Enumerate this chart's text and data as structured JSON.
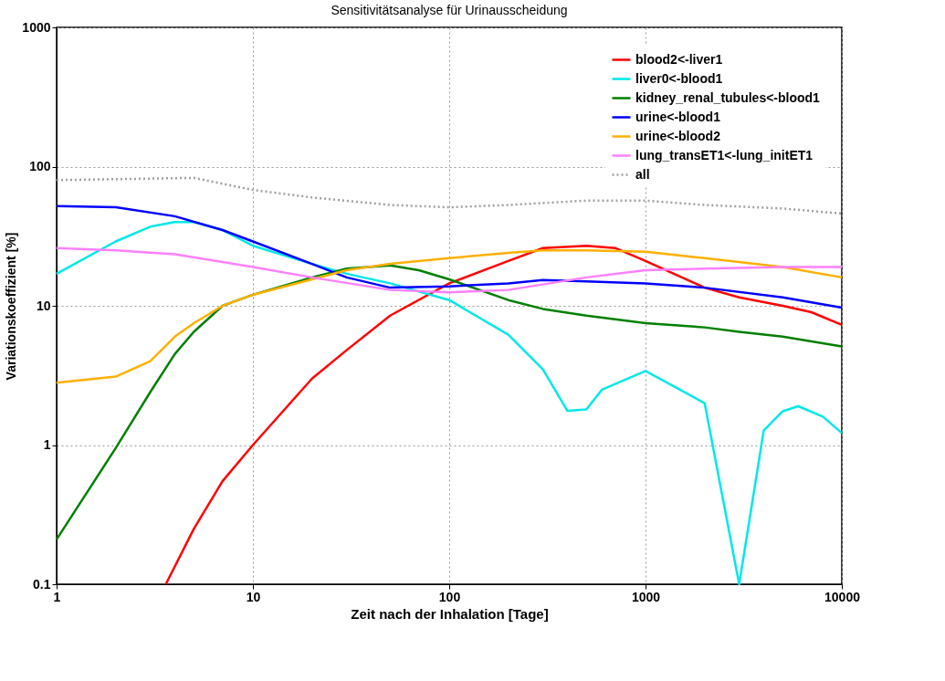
{
  "chart_data": {
    "type": "line",
    "title": "Sensitivitätsanalyse für Urinausscheidung",
    "xlabel": "Zeit nach der Inhalation [Tage]",
    "ylabel": "Variationskoeffizient [%]",
    "log": "xy",
    "xlim": [
      1,
      10000
    ],
    "ylim": [
      0.1,
      1000
    ],
    "xticks": [
      1,
      10,
      100,
      1000,
      10000
    ],
    "yticks": [
      0.1,
      1,
      10,
      100,
      1000
    ],
    "grid": true,
    "legend": "top right",
    "marker": "none",
    "series": [
      {
        "name": "blood2<-liver1",
        "color": "#ff0000",
        "line_style": "solid",
        "x": [
          3.6,
          5,
          7,
          10,
          20,
          30,
          50,
          100,
          200,
          300,
          500,
          700,
          1000,
          2000,
          3000,
          5000,
          7000,
          10000
        ],
        "values": [
          0.1,
          0.25,
          0.55,
          1.0,
          3,
          4.8,
          8.5,
          14.5,
          21,
          26,
          27,
          26,
          21,
          13.5,
          11.5,
          10,
          9,
          7.3
        ]
      },
      {
        "name": "liver0<-blood1",
        "color": "#00e8e8",
        "line_style": "solid",
        "x": [
          1,
          2,
          3,
          4,
          5,
          7,
          10,
          20,
          30,
          50,
          100,
          200,
          300,
          400,
          500,
          600,
          1000,
          2000,
          3000,
          4000,
          5000,
          6000,
          8000,
          10000
        ],
        "values": [
          17,
          29,
          37,
          40,
          40,
          35,
          27,
          20,
          17,
          14.5,
          11,
          6.2,
          3.5,
          1.76,
          1.8,
          2.5,
          3.4,
          2.0,
          0.1,
          1.27,
          1.75,
          1.9,
          1.6,
          1.22
        ]
      },
      {
        "name": "kidney_renal_tubules<-blood1",
        "color": "#008000",
        "line_style": "solid",
        "x": [
          1,
          2,
          3,
          4,
          5,
          7,
          10,
          20,
          30,
          50,
          70,
          100,
          200,
          300,
          500,
          1000,
          2000,
          3000,
          5000,
          10000
        ],
        "values": [
          0.21,
          0.95,
          2.4,
          4.5,
          6.5,
          10,
          12,
          16,
          18.5,
          19.5,
          18,
          15.5,
          11,
          9.5,
          8.5,
          7.5,
          7,
          6.5,
          6,
          5.1
        ]
      },
      {
        "name": "urine<-blood1",
        "color": "#0000ff",
        "line_style": "solid",
        "x": [
          1,
          2,
          4,
          7,
          10,
          20,
          30,
          50,
          100,
          200,
          300,
          500,
          1000,
          2000,
          5000,
          10000
        ],
        "values": [
          52,
          51,
          44,
          35,
          29,
          20,
          16,
          13.5,
          13.8,
          14.5,
          15.3,
          15,
          14.5,
          13.5,
          11.5,
          9.7
        ]
      },
      {
        "name": "urine<-blood2",
        "color": "#ffb000",
        "line_style": "solid",
        "x": [
          1,
          2,
          3,
          4,
          5,
          7,
          10,
          20,
          30,
          50,
          100,
          200,
          300,
          500,
          1000,
          2000,
          5000,
          10000
        ],
        "values": [
          2.8,
          3.1,
          4,
          6,
          7.5,
          10,
          12,
          15.5,
          18,
          20,
          22,
          24,
          25,
          25,
          24.5,
          22,
          19,
          16
        ]
      },
      {
        "name": "lung_transET1<-lung_initET1",
        "color": "#ff80ff",
        "line_style": "solid",
        "x": [
          1,
          2,
          4,
          10,
          20,
          50,
          100,
          200,
          500,
          1000,
          2000,
          5000,
          10000
        ],
        "values": [
          26,
          25,
          23.5,
          19,
          16,
          13,
          12.5,
          13,
          16,
          18,
          18.5,
          19,
          19
        ]
      },
      {
        "name": "all",
        "color": "#a0a0a0",
        "line_style": "dotted",
        "x": [
          1,
          3,
          5,
          10,
          20,
          50,
          100,
          200,
          500,
          1000,
          2000,
          5000,
          10000
        ],
        "values": [
          80,
          82,
          83,
          68,
          60,
          53,
          51,
          53,
          57,
          57,
          53,
          50,
          46
        ]
      }
    ]
  }
}
